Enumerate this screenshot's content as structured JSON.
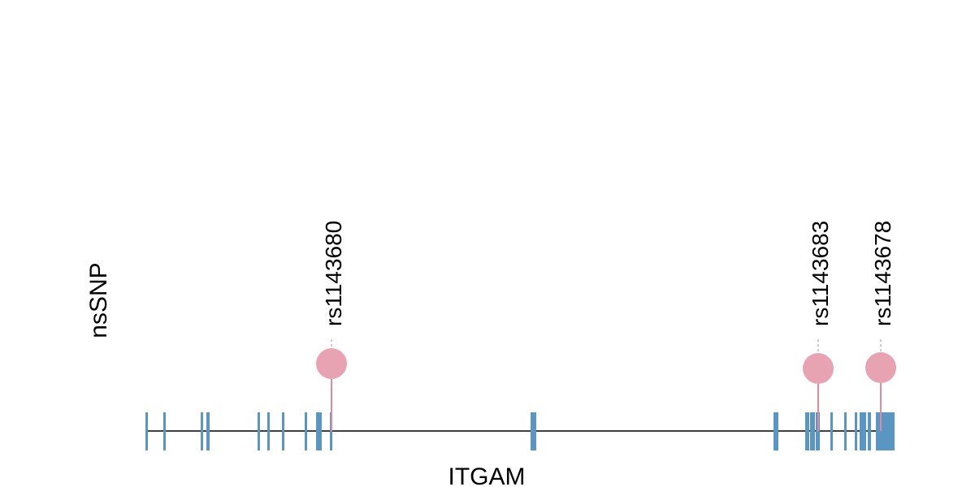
{
  "plot": {
    "track_label": "nsSNP",
    "gene_label": "ITGAM"
  },
  "colors": {
    "exon": "#5b96c2",
    "snp": "#e8a3b2",
    "snp_stem": "#e08aa0",
    "connector": "#bbbbbb",
    "backbone": "#000000"
  },
  "chart_data": {
    "type": "lollipop",
    "gene": "ITGAM",
    "track": "nsSNP",
    "snps": [
      {
        "id": "rs1143680",
        "exon_index": 14
      },
      {
        "id": "rs1143683",
        "exon_index": 18
      },
      {
        "id": "rs1143678",
        "exon_index": 27
      }
    ],
    "exon_count": 31
  }
}
